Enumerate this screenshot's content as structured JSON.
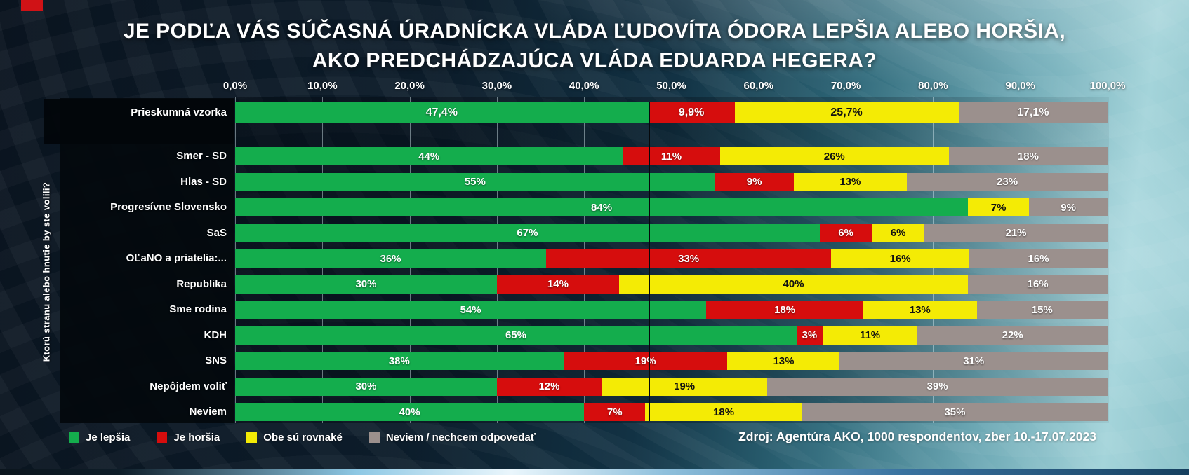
{
  "header": {
    "title_line1": "JE PODĽA VÁS SÚČASNÁ ÚRADNÍCKA VLÁDA ĽUDOVÍTA ÓDORA LEPŠIA ALEBO HORŠIA,",
    "title_line2": "AKO PREDCHÁDZAJÚCA VLÁDA EDUARDA HEGERA?"
  },
  "chart_data": {
    "type": "bar",
    "stacked": true,
    "orientation": "horizontal",
    "grid": true,
    "xlim": [
      0,
      100
    ],
    "axis_ticks": [
      "0,0%",
      "10,0%",
      "20,0%",
      "30,0%",
      "40,0%",
      "50,0%",
      "60,0%",
      "70,0%",
      "80,0%",
      "90,0%",
      "100,0%"
    ],
    "ylabel": "Ktorú stranu alebo hnutie by ste volili?",
    "legend_position": "bottom-left",
    "series": [
      {
        "name": "Je lepšia",
        "color": "#14ad4d",
        "text": "light"
      },
      {
        "name": "Je horšia",
        "color": "#d60d0d",
        "text": "light"
      },
      {
        "name": "Obe sú rovnaké",
        "color": "#f4eb05",
        "text": "dark"
      },
      {
        "name": "Neviem / nechcem odpovedať",
        "color": "#9b908d",
        "text": "light"
      }
    ],
    "rows": [
      {
        "label": "Prieskumná vzorka",
        "group": "sample",
        "values": [
          47.4,
          9.9,
          25.7,
          17.1
        ],
        "value_labels": [
          "47,4%",
          "9,9%",
          "25,7%",
          "17,1%"
        ]
      },
      {
        "label": "Smer - SD",
        "group": "party",
        "values": [
          44,
          11,
          26,
          18
        ],
        "value_labels": [
          "44%",
          "11%",
          "26%",
          "18%"
        ]
      },
      {
        "label": "Hlas - SD",
        "group": "party",
        "values": [
          55,
          9,
          13,
          23
        ],
        "value_labels": [
          "55%",
          "9%",
          "13%",
          "23%"
        ]
      },
      {
        "label": "Progresívne Slovensko",
        "group": "party",
        "values": [
          84,
          0,
          7,
          9
        ],
        "value_labels": [
          "84%",
          "",
          "7%",
          "9%"
        ]
      },
      {
        "label": "SaS",
        "group": "party",
        "values": [
          67,
          6,
          6,
          21
        ],
        "value_labels": [
          "67%",
          "6%",
          "6%",
          "21%"
        ]
      },
      {
        "label": "OĽaNO a priatelia:...",
        "group": "party",
        "values": [
          36,
          33,
          16,
          16
        ],
        "value_labels": [
          "36%",
          "33%",
          "16%",
          "16%"
        ]
      },
      {
        "label": "Republika",
        "group": "party",
        "values": [
          30,
          14,
          40,
          16
        ],
        "value_labels": [
          "30%",
          "14%",
          "40%",
          "16%"
        ]
      },
      {
        "label": "Sme rodina",
        "group": "party",
        "values": [
          54,
          18,
          13,
          15
        ],
        "value_labels": [
          "54%",
          "18%",
          "13%",
          "15%"
        ]
      },
      {
        "label": "KDH",
        "group": "party",
        "values": [
          65,
          3,
          11,
          22
        ],
        "value_labels": [
          "65%",
          "3%",
          "11%",
          "22%"
        ]
      },
      {
        "label": "SNS",
        "group": "party",
        "values": [
          38,
          19,
          13,
          31
        ],
        "value_labels": [
          "38%",
          "19%",
          "13%",
          "31%"
        ]
      },
      {
        "label": "Nepôjdem voliť",
        "group": "party",
        "values": [
          30,
          12,
          19,
          39
        ],
        "value_labels": [
          "30%",
          "12%",
          "19%",
          "39%"
        ]
      },
      {
        "label": "Neviem",
        "group": "party",
        "values": [
          40,
          7,
          18,
          35
        ],
        "value_labels": [
          "40%",
          "7%",
          "18%",
          "35%"
        ]
      }
    ],
    "reference_line": {
      "at_percent": 47.4,
      "color": "#05080b"
    }
  },
  "legend": {
    "items": [
      "Je lepšia",
      "Je horšia",
      "Obe sú rovnaké",
      "Neviem / nechcem odpovedať"
    ]
  },
  "source": {
    "text": "Zdroj: Agentúra AKO,  1000 respondentov, zber 10.-17.07.2023"
  },
  "colors": {
    "better_green": "#14ad4d",
    "worse_red": "#d60d0d",
    "same_yellow": "#f4eb05",
    "dontknow_gray": "#9b908d",
    "background_dark": "#0c1c2a",
    "background_teal": "#8cc3cb"
  }
}
